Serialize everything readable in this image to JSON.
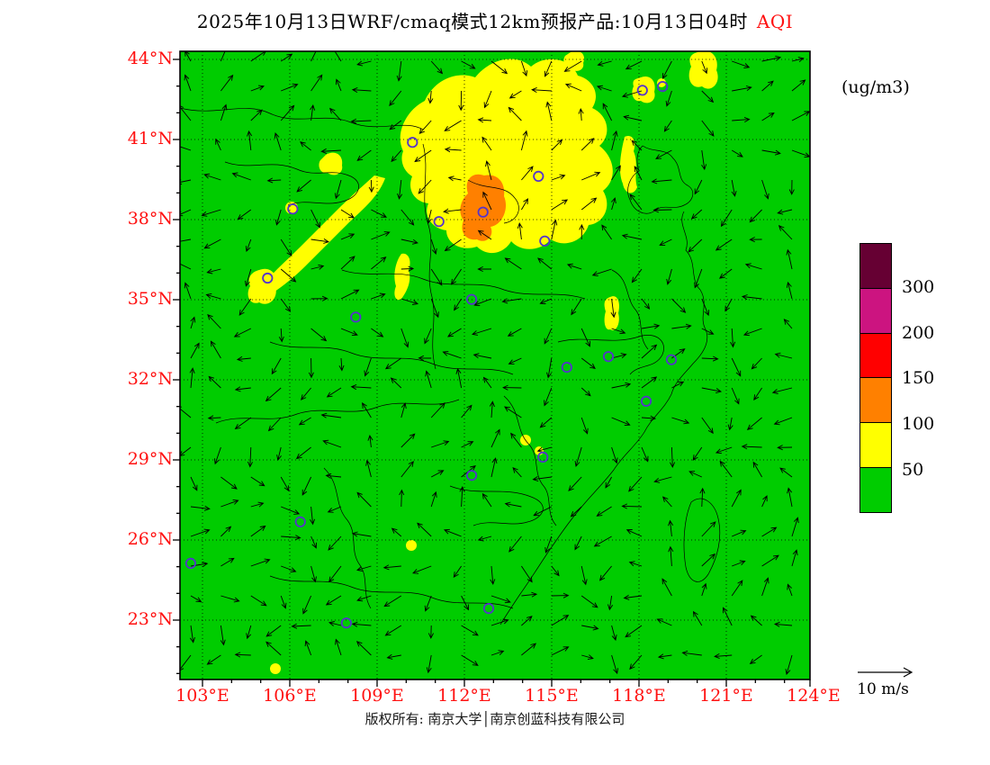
{
  "title": {
    "main": "2025年10月13日WRF/cmaq模式12km预报产品:10月13日04时",
    "highlight": "AQI"
  },
  "units_label": "(ug/m3)",
  "footer": "版权所有: 南京大学│南京创蓝科技有限公司",
  "wind_scale_label": "10 m/s",
  "axes": {
    "lat_labels": [
      "44°N",
      "41°N",
      "38°N",
      "35°N",
      "32°N",
      "29°N",
      "26°N",
      "23°N"
    ],
    "lon_labels": [
      "103°E",
      "106°E",
      "109°E",
      "112°E",
      "115°E",
      "118°E",
      "121°E",
      "124°E"
    ],
    "label_color": "#FF1010"
  },
  "colorbar": {
    "tick_labels": [
      "300",
      "200",
      "150",
      "100",
      "50"
    ],
    "segments_top_to_bottom": [
      {
        "label": "gt300",
        "color": "#660033"
      },
      {
        "label": "200-300",
        "color": "#CC1480"
      },
      {
        "label": "150-200",
        "color": "#FF0000"
      },
      {
        "label": "100-150",
        "color": "#FF8000"
      },
      {
        "label": "50-100",
        "color": "#FFFF00"
      },
      {
        "label": "lt50",
        "color": "#00CC00"
      }
    ]
  },
  "map": {
    "station_color": "#5533CC"
  },
  "chart_data": {
    "type": "heatmap",
    "title": "2025年10月13日 WRF/CMAQ 12km forecast, valid 10月13日04时",
    "variable": "AQI",
    "units": "ug/m3",
    "lon_ticks": [
      103,
      106,
      109,
      112,
      115,
      118,
      121,
      124
    ],
    "lat_ticks": [
      23,
      26,
      29,
      32,
      35,
      38,
      41,
      44
    ],
    "lon_range": [
      102.3,
      124.3
    ],
    "lat_range": [
      22.3,
      44.3
    ],
    "fill_levels": [
      50,
      100,
      150,
      200,
      300
    ],
    "level_colors": {
      "lt50": "#00CC00",
      "50-100": "#FFFF00",
      "100-150": "#FF8000",
      "150-200": "#FF0000",
      "200-300": "#CC1480",
      "gt300": "#660033"
    },
    "field_summary": [
      {
        "range": "<50",
        "coverage": "green over most of the domain"
      },
      {
        "range": "50-100",
        "coverage": "large yellow area over North China Plain (~112-118E, 37-42N), diagonal band ~106-110E/33-36N, small right-edge sliver ~116E/34N, scattered specks near 29N and in far south"
      },
      {
        "range": "100-150",
        "coverage": "orange cell ~113-114.5E, 37-38.5N"
      }
    ],
    "wind_reference_ms": 10,
    "wind_field_note": "thin black wind vectors plotted on regular grid across whole map",
    "stations_pct": [
      [
        17.9,
        25.1
      ],
      [
        36.9,
        14.5
      ],
      [
        48.1,
        25.6
      ],
      [
        41.1,
        27.1
      ],
      [
        56.9,
        19.9
      ],
      [
        57.9,
        30.2
      ],
      [
        46.3,
        39.5
      ],
      [
        13.9,
        36.1
      ],
      [
        27.9,
        42.3
      ],
      [
        61.4,
        50.3
      ],
      [
        68.0,
        48.6
      ],
      [
        74.0,
        55.7
      ],
      [
        78.0,
        49.1
      ],
      [
        57.6,
        64.6
      ],
      [
        46.3,
        67.5
      ],
      [
        19.1,
        74.9
      ],
      [
        1.7,
        81.5
      ],
      [
        26.4,
        91.0
      ],
      [
        49.0,
        88.7
      ],
      [
        76.6,
        5.6
      ],
      [
        73.4,
        6.2
      ]
    ]
  }
}
